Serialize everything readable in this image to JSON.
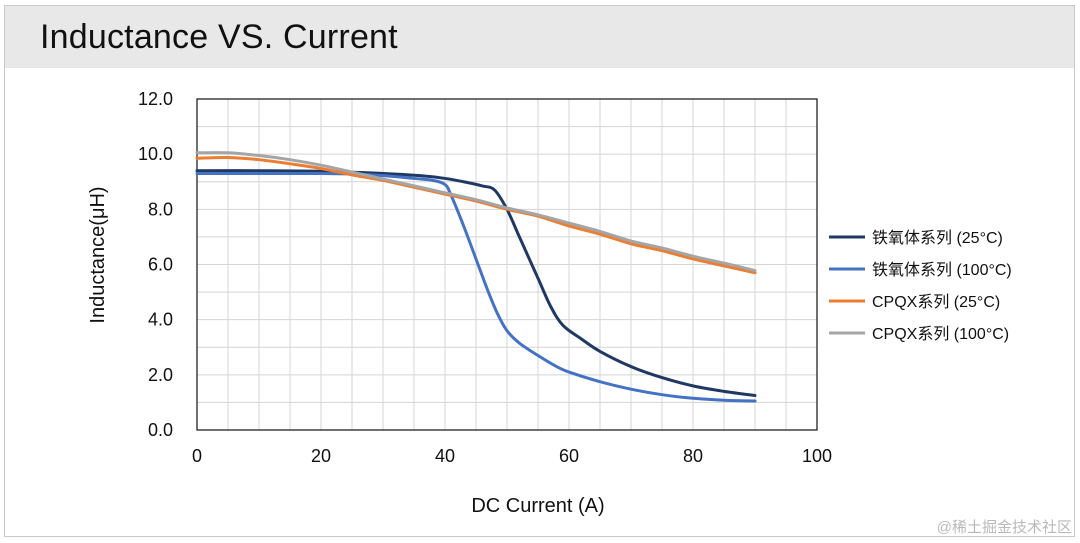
{
  "chart_data": {
    "type": "line",
    "title": "Inductance VS. Current",
    "xlabel": "DC Current (A)",
    "ylabel": "Inductance(μH)",
    "xlim": [
      0,
      100
    ],
    "ylim": [
      0,
      12
    ],
    "x_ticks": [
      "0",
      "20",
      "40",
      "60",
      "80",
      "100"
    ],
    "y_ticks": [
      "0.0",
      "2.0",
      "4.0",
      "6.0",
      "8.0",
      "10.0",
      "12.0"
    ],
    "x_tick_values": [
      0,
      20,
      40,
      60,
      80,
      100
    ],
    "y_tick_values": [
      0,
      2,
      4,
      6,
      8,
      10,
      12
    ],
    "grid": true,
    "legend_position": "right",
    "series": [
      {
        "name": "铁氧体系列 (25°C)",
        "color": "#203864",
        "points": [
          [
            0,
            9.4
          ],
          [
            10,
            9.4
          ],
          [
            20,
            9.38
          ],
          [
            30,
            9.3
          ],
          [
            36,
            9.22
          ],
          [
            40,
            9.12
          ],
          [
            43,
            9.0
          ],
          [
            46,
            8.85
          ],
          [
            48,
            8.7
          ],
          [
            50,
            8.0
          ],
          [
            52,
            7.0
          ],
          [
            55,
            5.5
          ],
          [
            57,
            4.5
          ],
          [
            59,
            3.8
          ],
          [
            62,
            3.3
          ],
          [
            65,
            2.85
          ],
          [
            70,
            2.3
          ],
          [
            75,
            1.9
          ],
          [
            80,
            1.6
          ],
          [
            85,
            1.4
          ],
          [
            90,
            1.25
          ]
        ]
      },
      {
        "name": "铁氧体系列 (100°C)",
        "color": "#4472c4",
        "points": [
          [
            0,
            9.3
          ],
          [
            10,
            9.3
          ],
          [
            20,
            9.3
          ],
          [
            25,
            9.28
          ],
          [
            30,
            9.22
          ],
          [
            35,
            9.12
          ],
          [
            38,
            9.05
          ],
          [
            40,
            8.9
          ],
          [
            41,
            8.5
          ],
          [
            43,
            7.4
          ],
          [
            45,
            6.2
          ],
          [
            47,
            5.0
          ],
          [
            48.5,
            4.2
          ],
          [
            50,
            3.6
          ],
          [
            52,
            3.15
          ],
          [
            55,
            2.7
          ],
          [
            58,
            2.3
          ],
          [
            60,
            2.1
          ],
          [
            65,
            1.75
          ],
          [
            70,
            1.48
          ],
          [
            75,
            1.28
          ],
          [
            80,
            1.15
          ],
          [
            85,
            1.08
          ],
          [
            90,
            1.05
          ]
        ]
      },
      {
        "name": "CPQX系列 (25°C)",
        "color": "#ed7d31",
        "points": [
          [
            0,
            9.85
          ],
          [
            5,
            9.88
          ],
          [
            10,
            9.8
          ],
          [
            15,
            9.65
          ],
          [
            20,
            9.48
          ],
          [
            25,
            9.25
          ],
          [
            30,
            9.05
          ],
          [
            35,
            8.8
          ],
          [
            40,
            8.55
          ],
          [
            45,
            8.3
          ],
          [
            50,
            8.0
          ],
          [
            55,
            7.75
          ],
          [
            60,
            7.4
          ],
          [
            65,
            7.1
          ],
          [
            70,
            6.75
          ],
          [
            75,
            6.5
          ],
          [
            80,
            6.2
          ],
          [
            85,
            5.95
          ],
          [
            90,
            5.7
          ]
        ]
      },
      {
        "name": "CPQX系列 (100°C)",
        "color": "#a5a5a5",
        "points": [
          [
            0,
            10.05
          ],
          [
            5,
            10.05
          ],
          [
            10,
            9.95
          ],
          [
            15,
            9.8
          ],
          [
            20,
            9.6
          ],
          [
            25,
            9.35
          ],
          [
            30,
            9.1
          ],
          [
            35,
            8.85
          ],
          [
            40,
            8.6
          ],
          [
            45,
            8.35
          ],
          [
            50,
            8.05
          ],
          [
            55,
            7.8
          ],
          [
            60,
            7.5
          ],
          [
            65,
            7.2
          ],
          [
            70,
            6.85
          ],
          [
            75,
            6.6
          ],
          [
            80,
            6.3
          ],
          [
            85,
            6.05
          ],
          [
            90,
            5.78
          ]
        ]
      }
    ]
  },
  "watermark": "@稀土掘金技术社区"
}
